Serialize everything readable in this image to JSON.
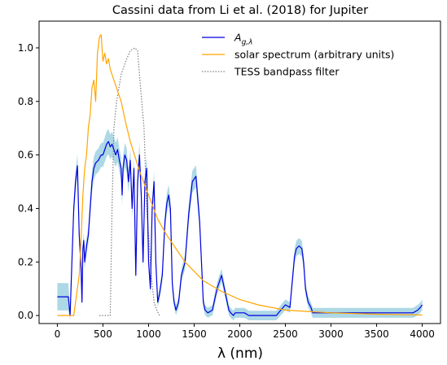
{
  "chart_data": {
    "type": "line",
    "title": "Cassini data from Li et al. (2018) for Jupiter",
    "xlabel": "λ (nm)",
    "ylabel": "",
    "xlim": [
      -200,
      4200
    ],
    "ylim": [
      -0.03,
      1.1
    ],
    "xticks": [
      0,
      500,
      1000,
      1500,
      2000,
      2500,
      3000,
      3500,
      4000
    ],
    "yticks": [
      0.0,
      0.2,
      0.4,
      0.6,
      0.8,
      1.0
    ],
    "grid": false,
    "legend_position": "top-right",
    "colors": {
      "albedo": "#0000dd",
      "albedo_band": "#add8e6",
      "solar": "#ffa500",
      "tess": "#808080"
    },
    "series": [
      {
        "name": "A_{g,λ}",
        "legend_main": "A",
        "legend_sub": "g,λ",
        "style": "solid",
        "x": [
          0,
          120,
          140,
          160,
          180,
          200,
          220,
          240,
          260,
          270,
          280,
          290,
          300,
          320,
          340,
          360,
          380,
          400,
          420,
          450,
          480,
          500,
          520,
          540,
          560,
          580,
          600,
          620,
          640,
          660,
          680,
          700,
          710,
          720,
          740,
          760,
          780,
          800,
          820,
          840,
          860,
          880,
          900,
          920,
          940,
          960,
          980,
          1000,
          1020,
          1040,
          1060,
          1080,
          1100,
          1120,
          1150,
          1180,
          1200,
          1220,
          1240,
          1260,
          1280,
          1300,
          1330,
          1360,
          1400,
          1440,
          1480,
          1520,
          1560,
          1600,
          1620,
          1650,
          1700,
          1750,
          1800,
          1850,
          1880,
          1900,
          1930,
          1950,
          2000,
          2050,
          2100,
          2200,
          2300,
          2400,
          2450,
          2500,
          2550,
          2600,
          2620,
          2650,
          2680,
          2700,
          2720,
          2750,
          2780,
          2800,
          2850,
          2900,
          3000,
          3100,
          3200,
          3300,
          3400,
          3500,
          3600,
          3700,
          3800,
          3900,
          3950,
          3980,
          4000
        ],
        "y": [
          0.07,
          0.07,
          0.0,
          0.2,
          0.4,
          0.5,
          0.56,
          0.3,
          0.18,
          0.05,
          0.25,
          0.28,
          0.2,
          0.26,
          0.3,
          0.4,
          0.5,
          0.55,
          0.57,
          0.58,
          0.6,
          0.6,
          0.62,
          0.64,
          0.65,
          0.63,
          0.64,
          0.62,
          0.6,
          0.62,
          0.58,
          0.55,
          0.45,
          0.55,
          0.6,
          0.58,
          0.5,
          0.58,
          0.4,
          0.55,
          0.15,
          0.5,
          0.6,
          0.45,
          0.2,
          0.5,
          0.55,
          0.2,
          0.1,
          0.4,
          0.5,
          0.2,
          0.05,
          0.08,
          0.15,
          0.35,
          0.42,
          0.45,
          0.4,
          0.12,
          0.05,
          0.02,
          0.05,
          0.15,
          0.2,
          0.38,
          0.5,
          0.52,
          0.35,
          0.05,
          0.02,
          0.01,
          0.02,
          0.1,
          0.15,
          0.07,
          0.02,
          0.01,
          0.0,
          0.01,
          0.01,
          0.01,
          0.0,
          0.0,
          0.0,
          0.0,
          0.02,
          0.04,
          0.03,
          0.22,
          0.25,
          0.26,
          0.25,
          0.2,
          0.1,
          0.05,
          0.03,
          0.01,
          0.01,
          0.01,
          0.01,
          0.01,
          0.01,
          0.01,
          0.01,
          0.01,
          0.01,
          0.01,
          0.01,
          0.01,
          0.02,
          0.03,
          0.04
        ]
      },
      {
        "name": "solar spectrum (arbitrary units)",
        "style": "solid",
        "x": [
          0,
          180,
          200,
          240,
          260,
          280,
          300,
          320,
          340,
          360,
          380,
          400,
          420,
          440,
          460,
          480,
          500,
          520,
          540,
          560,
          580,
          600,
          650,
          700,
          750,
          800,
          900,
          1000,
          1100,
          1200,
          1400,
          1600,
          1800,
          2000,
          2200,
          2500,
          3000,
          3500,
          4000
        ],
        "y": [
          0.0,
          0.0,
          0.05,
          0.15,
          0.28,
          0.45,
          0.55,
          0.6,
          0.7,
          0.75,
          0.85,
          0.88,
          0.8,
          0.98,
          1.04,
          1.05,
          0.95,
          0.98,
          0.94,
          0.96,
          0.92,
          0.9,
          0.85,
          0.8,
          0.72,
          0.65,
          0.54,
          0.45,
          0.36,
          0.3,
          0.2,
          0.13,
          0.09,
          0.06,
          0.04,
          0.02,
          0.01,
          0.005,
          0.002
        ]
      },
      {
        "name": "TESS bandpass filter",
        "style": "dotted",
        "x": [
          460,
          580,
          600,
          620,
          650,
          700,
          750,
          800,
          850,
          880,
          900,
          950,
          980,
          1000,
          1030,
          1060,
          1090,
          1120
        ],
        "y": [
          0.0,
          0.0,
          0.4,
          0.7,
          0.8,
          0.9,
          0.95,
          0.99,
          1.0,
          0.99,
          0.9,
          0.7,
          0.4,
          0.3,
          0.15,
          0.05,
          0.02,
          0.0
        ]
      }
    ]
  }
}
